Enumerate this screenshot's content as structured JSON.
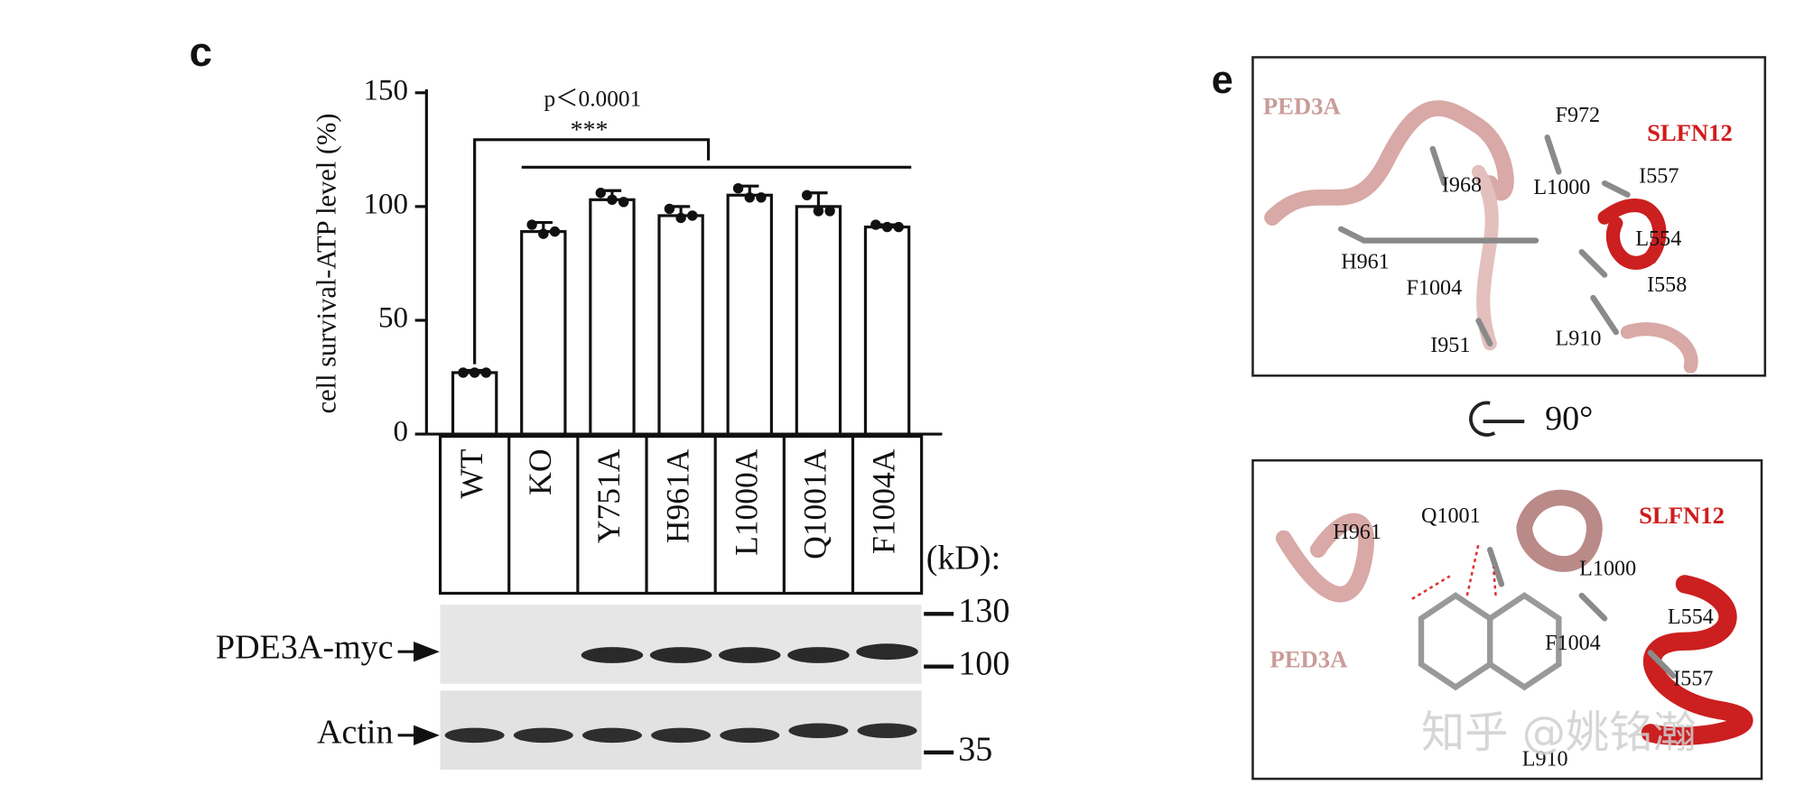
{
  "chart_data": {
    "type": "bar",
    "panel_label": "c",
    "y_label": "cell survival-ATP level (%)",
    "categories": [
      "WT",
      "KO",
      "Y751A",
      "H961A",
      "L1000A",
      "Q1001A",
      "F1004A"
    ],
    "values": [
      27,
      89,
      103,
      96,
      105,
      100,
      91
    ],
    "errors": [
      1,
      4,
      4,
      4,
      4,
      6,
      1
    ],
    "points": [
      [
        27,
        27,
        27
      ],
      [
        92,
        88,
        89
      ],
      [
        106,
        103,
        102
      ],
      [
        99,
        95,
        96
      ],
      [
        108,
        104,
        104
      ],
      [
        105,
        98,
        98
      ],
      [
        92,
        91,
        91
      ]
    ],
    "color": "#ffffff",
    "ylim": [
      0,
      150
    ],
    "yticks": [
      0,
      50,
      100,
      150
    ],
    "annotations": [
      "p＜0.0001",
      "***"
    ]
  },
  "blot": {
    "rows": [
      "PDE3A-myc",
      "Actin"
    ],
    "unit": "(kD):",
    "markers": [
      130,
      100,
      35
    ]
  },
  "panel_e": {
    "label": "e",
    "top": {
      "labels": [
        "PED3A",
        "F972",
        "SLFN12",
        "I968",
        "L1000",
        "I557",
        "L554",
        "H961",
        "F1004",
        "I558",
        "I951",
        "L910"
      ]
    },
    "rotation": "90°",
    "bottom": {
      "labels": [
        "H961",
        "Q1001",
        "SLFN12",
        "L1000",
        "L554",
        "PED3A",
        "F1004",
        "I557",
        "L910"
      ]
    },
    "watermark": "知乎 @姚铭瀚"
  }
}
